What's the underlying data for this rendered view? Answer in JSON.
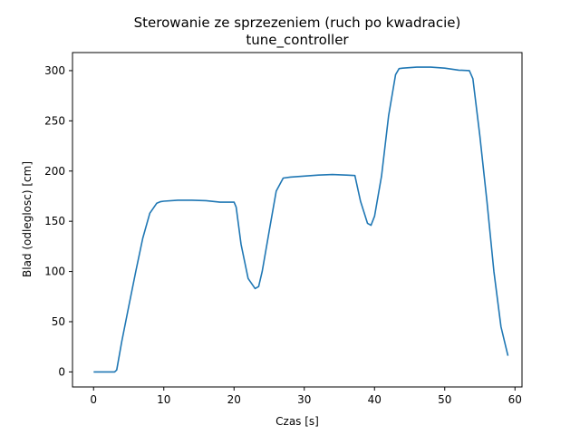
{
  "chart_data": {
    "type": "line",
    "title": "Sterowanie ze sprzezeniem (ruch po kwadracie)",
    "subtitle": "tune_controller",
    "xlabel": "Czas [s]",
    "ylabel": "Blad (odleglosc) [cm]",
    "xlim": [
      -3,
      61
    ],
    "ylim": [
      -15,
      318
    ],
    "xticks": [
      0,
      10,
      20,
      30,
      40,
      50,
      60
    ],
    "yticks": [
      0,
      50,
      100,
      150,
      200,
      250,
      300
    ],
    "grid": false,
    "line_color": "#1f77b4",
    "series": [
      {
        "x": [
          0,
          1,
          2,
          3,
          3.3,
          4,
          5,
          6,
          7,
          8,
          9,
          9.5,
          10,
          12,
          14,
          16,
          18,
          20,
          20.3,
          21,
          22,
          23,
          23.5,
          24,
          25,
          26,
          27,
          28,
          30,
          32,
          34,
          36,
          37.2,
          38,
          39,
          39.5,
          40,
          41,
          42,
          43,
          43.5,
          44,
          46,
          48,
          50,
          52,
          53.5,
          54,
          55,
          56,
          57,
          58,
          59
        ],
        "y": [
          0,
          0,
          0,
          0,
          2,
          30,
          65,
          100,
          133,
          158,
          168,
          169.5,
          170,
          171,
          171,
          170.5,
          169,
          169,
          164,
          127,
          93,
          83,
          85,
          100,
          140,
          180,
          193,
          194,
          195,
          196,
          196.5,
          196,
          195.5,
          170,
          148,
          146,
          155,
          195,
          255,
          296,
          302,
          302.5,
          303.5,
          303.5,
          302.5,
          300.5,
          300,
          292,
          235,
          170,
          100,
          45,
          16
        ]
      }
    ]
  }
}
